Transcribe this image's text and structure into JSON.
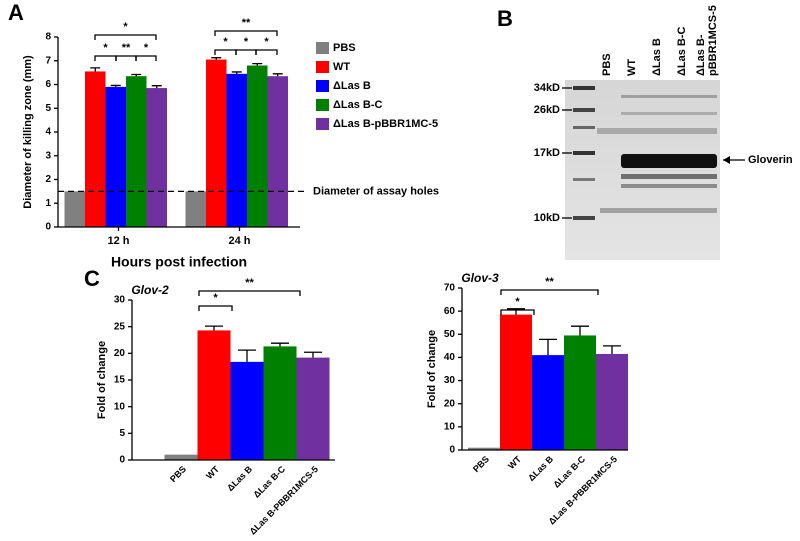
{
  "panel_labels": [
    "A",
    "B",
    "C"
  ],
  "chart_data": [
    {
      "type": "bar",
      "y_label": "Diameter of killing zone (mm)",
      "x_label": "Hours post infection",
      "categories": [
        "12 h",
        "24 h"
      ],
      "series": [
        {
          "name": "PBS",
          "color": "#808080",
          "values": [
            1.5,
            1.5
          ],
          "errors": [
            0,
            0
          ]
        },
        {
          "name": "WT",
          "color": "#ff0000",
          "values": [
            6.55,
            7.05
          ],
          "errors": [
            0.15,
            0.08
          ]
        },
        {
          "name": "ΔLas B",
          "color": "#0000ff",
          "values": [
            5.9,
            6.45
          ],
          "errors": [
            0.06,
            0.08
          ]
        },
        {
          "name": "ΔLas B-C",
          "color": "#008000",
          "values": [
            6.35,
            6.8
          ],
          "errors": [
            0.07,
            0.08
          ]
        },
        {
          "name": "ΔLas B-pBBR1MC-5",
          "color": "#7030a0",
          "values": [
            5.85,
            6.35
          ],
          "errors": [
            0.1,
            0.1
          ]
        }
      ],
      "ylim": [
        0,
        8
      ],
      "yticks": [
        0,
        1,
        2,
        3,
        4,
        5,
        6,
        7,
        8
      ],
      "reference_line": {
        "value": 1.5,
        "label": "Diameter of assay holes"
      },
      "significance": [
        "*",
        "*",
        "**",
        "*",
        "**",
        "*",
        "*",
        "*"
      ],
      "legend": "right"
    },
    {
      "type": "bar",
      "title": "Glov-2",
      "y_label": "Fold of change",
      "categories": [
        "PBS",
        "WT",
        "ΔLas B",
        "ΔLas B-C",
        "ΔLas B-PBBR1MCS-5"
      ],
      "values": [
        1,
        24.3,
        18.4,
        21.3,
        19.2
      ],
      "errors": [
        0,
        0.8,
        2.2,
        0.6,
        1.0
      ],
      "colors": [
        "#808080",
        "#ff0000",
        "#0000ff",
        "#008000",
        "#7030a0"
      ],
      "ylim": [
        0,
        30
      ],
      "yticks": [
        0,
        5,
        10,
        15,
        20,
        25,
        30
      ],
      "significance": [
        "*",
        "**"
      ]
    },
    {
      "type": "bar",
      "title": "Glov-3",
      "y_label": "Fold of change",
      "categories": [
        "PBS",
        "WT",
        "ΔLas B",
        "ΔLas B-C",
        "ΔLas B-PBBR1MCS-5"
      ],
      "values": [
        1,
        58.5,
        41,
        49.5,
        41.5
      ],
      "errors": [
        0,
        2.5,
        6.8,
        4,
        3.5
      ],
      "colors": [
        "#808080",
        "#ff0000",
        "#0000ff",
        "#008000",
        "#7030a0"
      ],
      "ylim": [
        0,
        70
      ],
      "yticks": [
        0,
        10,
        20,
        30,
        40,
        50,
        60,
        70
      ],
      "significance": [
        "*",
        "**"
      ]
    }
  ],
  "gel": {
    "lanes": [
      "PBS",
      "WT",
      "ΔLas B",
      "ΔLas B-C",
      [
        "ΔLas B-",
        "pBBR1MCS-5"
      ]
    ],
    "markers": [
      "34kD",
      "26kD",
      "17kD",
      "10kD"
    ],
    "band_label": "Gloverin"
  }
}
